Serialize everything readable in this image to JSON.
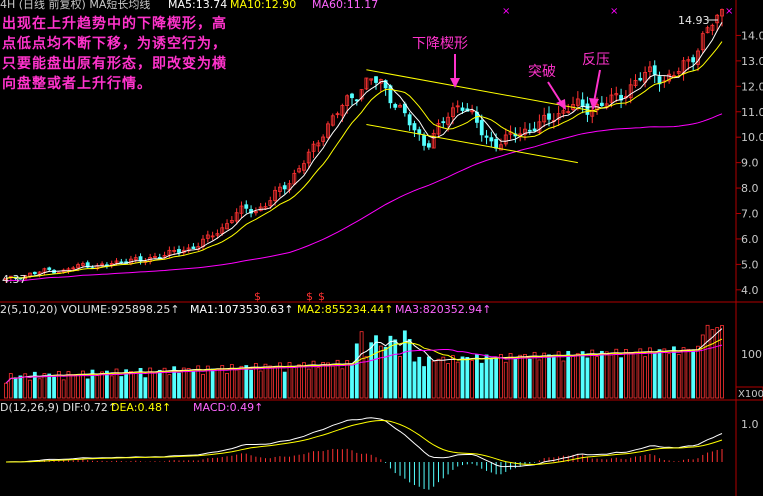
{
  "header": {
    "main": "4H (日线 前复权) MA短长均线",
    "ma5": "MA5:13.74",
    "ma10": "MA10:12.90",
    "ma60": "MA60:11.17"
  },
  "annotation_text": [
    "出现在上升趋势中的下降楔形，高",
    "点低点均不断下移，为诱空行为，",
    "只要能盘出原有形态，即改变为横",
    "向盘整或者上升行情。"
  ],
  "labels": {
    "wedge": "下降楔形",
    "breakout": "突破",
    "pullback": "反压",
    "high_price": "14.93",
    "low_price": "4.37",
    "x_marker": "×"
  },
  "volume_header": {
    "main": "2(5,10,20) VOLUME:925898.25",
    "ma1": "MA1:1073530.63",
    "ma2": "MA2:855234.44",
    "ma3": "MA3:820352.94"
  },
  "macd_header": {
    "main": "D(12,26,9) DIF:0.72",
    "dea": "DEA:0.48",
    "macd": "MACD:0.49"
  },
  "arrow": "↑",
  "marker_dollar": "$",
  "volume_ticks": [
    "100",
    "X100"
  ],
  "macd_ticks": [
    "1.0"
  ],
  "colors": {
    "up": "#ff3232",
    "down": "#54ffff",
    "ma5": "#ffffff",
    "ma10": "#ffff00",
    "ma60": "#ff00ff",
    "annotation": "#ff33cc",
    "axis": "#b00000"
  },
  "chart_data": {
    "type": "candlestick",
    "title": "",
    "y_ticks": [
      4.0,
      5.0,
      6.0,
      7.0,
      8.0,
      9.0,
      10.0,
      11.0,
      12.0,
      13.0,
      14.0
    ],
    "ylim": [
      3.6,
      15.0
    ],
    "price_high": 14.93,
    "price_low": 4.37,
    "ma5_last": 13.74,
    "ma10_last": 12.9,
    "ma60_last": 11.17,
    "volume_last": 925898.25,
    "dif": 0.72,
    "dea": 0.48,
    "macd": 0.49,
    "wedge_upper": [
      [
        12.65,
        12.6
      ],
      [
        11.0,
        18.6
      ]
    ],
    "wedge_lower": [
      [
        10.5,
        0
      ],
      [
        9.0,
        18.6
      ]
    ],
    "closes_overview": [
      4.4,
      4.5,
      4.6,
      4.7,
      4.8,
      4.7,
      4.9,
      5.0,
      4.9,
      5.0,
      5.1,
      5.2,
      5.1,
      5.3,
      5.4,
      5.5,
      5.6,
      5.8,
      6.1,
      6.4,
      6.9,
      7.2,
      7.1,
      7.4,
      7.9,
      8.3,
      8.9,
      9.5,
      10.3,
      10.9,
      11.4,
      11.8,
      12.3,
      12.1,
      11.5,
      10.9,
      10.2,
      9.7,
      10.3,
      10.9,
      11.4,
      10.8,
      10.1,
      9.7,
      9.9,
      10.2,
      10.3,
      10.5,
      10.8,
      11.0,
      11.3,
      11.1,
      11.2,
      11.4,
      11.6,
      12.0,
      12.4,
      12.6,
      12.2,
      12.5,
      13.0,
      13.6,
      14.4,
      14.9
    ]
  }
}
